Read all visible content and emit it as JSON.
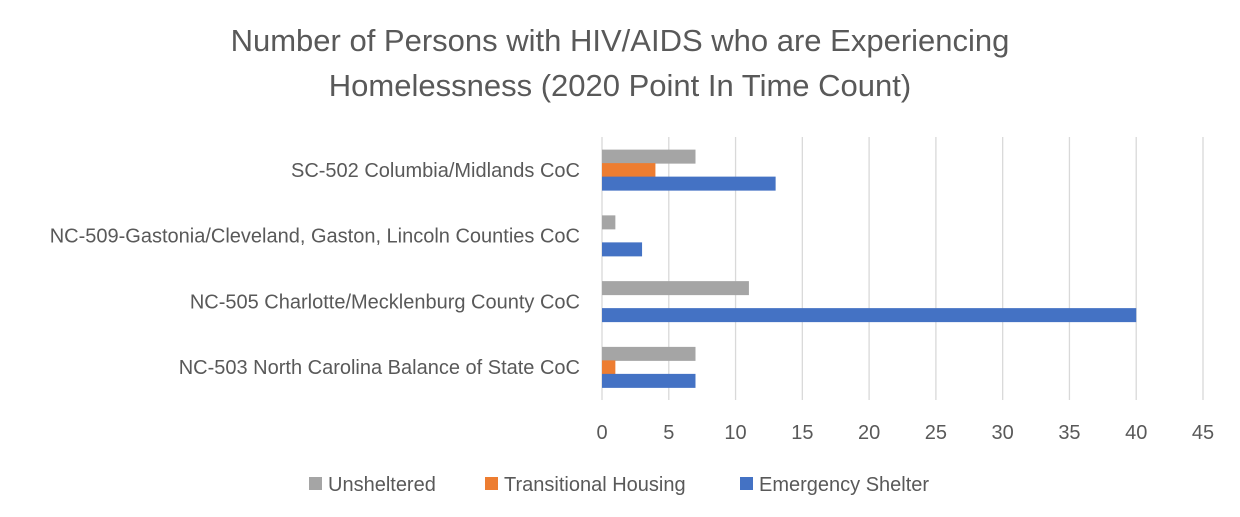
{
  "chart_data": {
    "type": "bar",
    "orientation": "horizontal",
    "title_lines": [
      "Number of Persons with HIV/AIDS who are Experiencing",
      "Homelessness (2020 Point In Time Count)"
    ],
    "categories": [
      "SC-502 Columbia/Midlands CoC",
      "NC-509-Gastonia/Cleveland, Gaston, Lincoln Counties CoC",
      "NC-505 Charlotte/Mecklenburg County CoC",
      "NC-503 North Carolina Balance of State CoC"
    ],
    "series": [
      {
        "name": "Unsheltered",
        "color": "#a5a5a5",
        "values": [
          7,
          1,
          11,
          7
        ]
      },
      {
        "name": "Transitional Housing",
        "color": "#ed7d31",
        "values": [
          4,
          0,
          0,
          1
        ]
      },
      {
        "name": "Emergency Shelter",
        "color": "#4472c4",
        "values": [
          13,
          3,
          40,
          7
        ]
      }
    ],
    "xlim": [
      0,
      45
    ],
    "x_ticks": [
      "0",
      "5",
      "10",
      "15",
      "20",
      "25",
      "30",
      "35",
      "40",
      "45"
    ],
    "grid": true,
    "legend_position": "bottom",
    "gridline_color": "#d9d9d9"
  }
}
